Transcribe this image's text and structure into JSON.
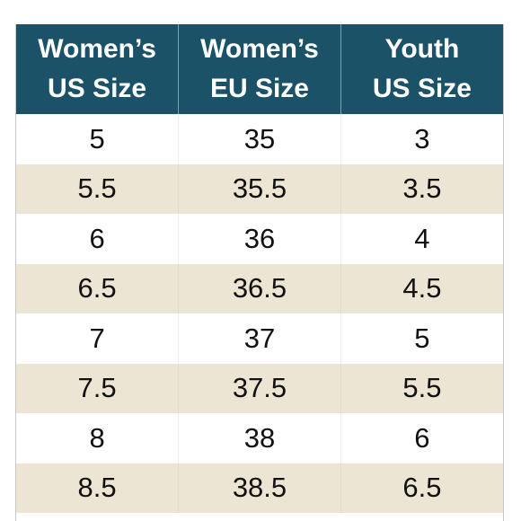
{
  "table": {
    "headers": [
      "Women’s\nUS Size",
      "Women’s\nEU Size",
      "Youth\nUS Size"
    ],
    "rows": [
      [
        "5",
        "35",
        "3"
      ],
      [
        "5.5",
        "35.5",
        "3.5"
      ],
      [
        "6",
        "36",
        "4"
      ],
      [
        "6.5",
        "36.5",
        "4.5"
      ],
      [
        "7",
        "37",
        "5"
      ],
      [
        "7.5",
        "37.5",
        "5.5"
      ],
      [
        "8",
        "38",
        "6"
      ],
      [
        "8.5",
        "38.5",
        "6.5"
      ]
    ]
  },
  "colors": {
    "header_background": "#1b5268",
    "header_text": "#ffffff",
    "row_alt": "#ede5d3",
    "row_plain": "#ffffff"
  }
}
